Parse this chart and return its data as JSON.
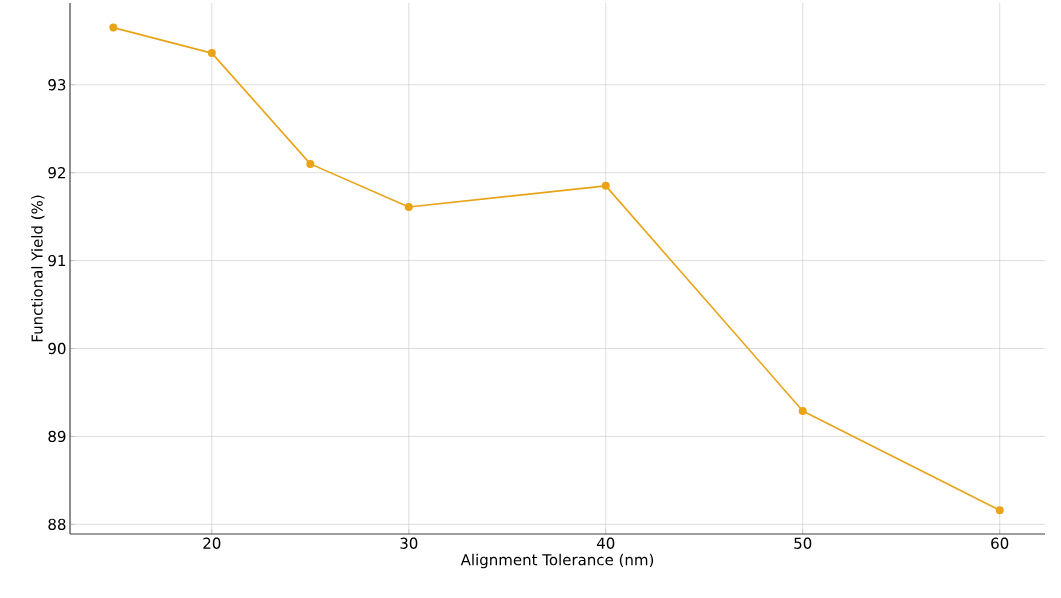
{
  "chart_data": {
    "type": "line",
    "xlabel": "Alignment Tolerance (nm)",
    "ylabel": "Functional Yield (%)",
    "x": [
      15,
      20,
      25,
      30,
      40,
      50,
      60
    ],
    "series": [
      {
        "color": "#e8a317",
        "values": [
          93.65,
          93.36,
          92.1,
          91.61,
          91.85,
          89.29,
          88.16
        ]
      }
    ],
    "xlim": [
      12.8,
      62.3
    ],
    "ylim": [
      87.89,
      93.93
    ],
    "xticks": [
      20,
      30,
      40,
      50,
      60
    ],
    "yticks": [
      88,
      89,
      90,
      91,
      92,
      93
    ],
    "grid": true,
    "marker": "circle",
    "line_style": "solid"
  }
}
